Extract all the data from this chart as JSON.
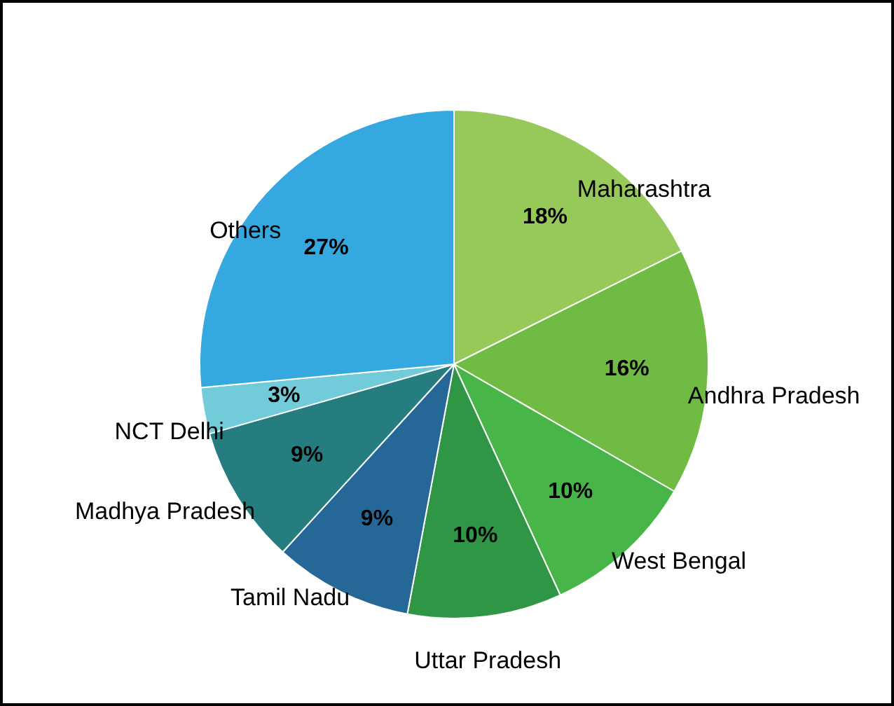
{
  "chart_data": {
    "type": "pie",
    "categories": [
      "Maharashtra",
      "Andhra Pradesh",
      "West Bengal",
      "Uttar Pradesh",
      "Tamil Nadu",
      "Madhya Pradesh",
      "NCT Delhi",
      "Others"
    ],
    "values": [
      18,
      16,
      10,
      10,
      9,
      9,
      3,
      27
    ],
    "value_labels": [
      "18%",
      "16%",
      "10%",
      "10%",
      "9%",
      "9%",
      "3%",
      "27%"
    ],
    "colors": [
      "#96c85a",
      "#70bb44",
      "#48b549",
      "#2e9645",
      "#256898",
      "#257d80",
      "#72cbd8",
      "#35a8e0"
    ],
    "legend": false
  }
}
